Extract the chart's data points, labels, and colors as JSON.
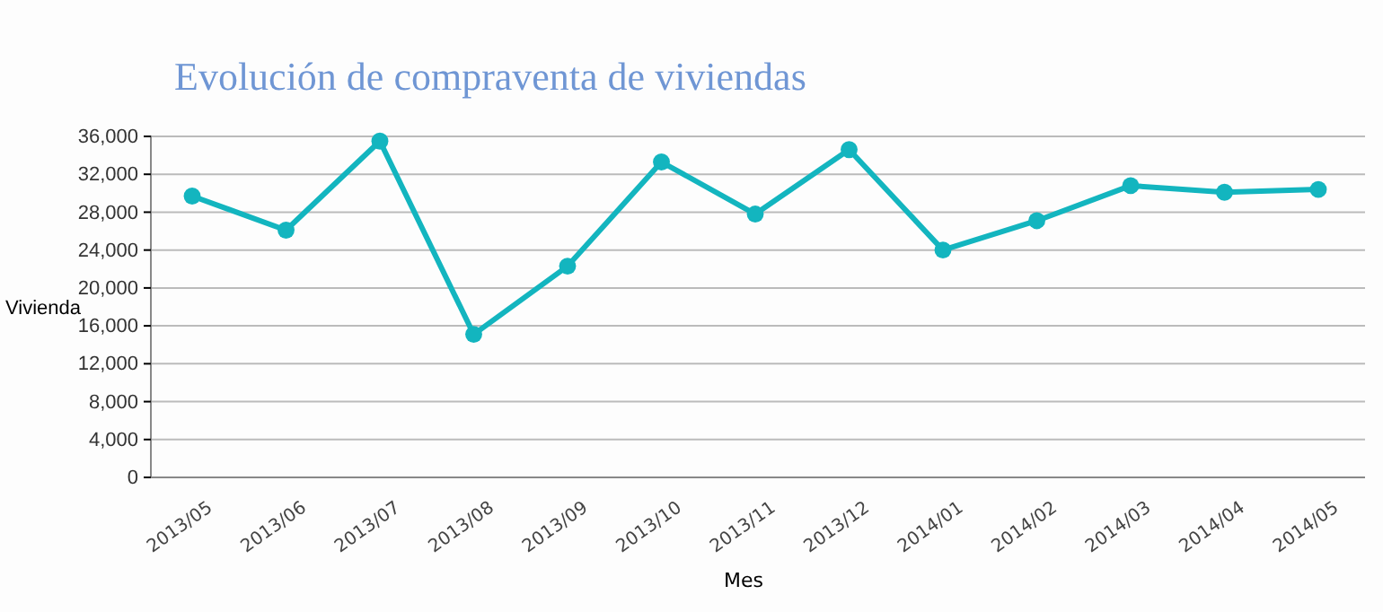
{
  "chart_data": {
    "type": "line",
    "title": "Evolución de compraventa de viviendas",
    "xlabel": "Mes",
    "ylabel": "Vivienda",
    "categories": [
      "2013/05",
      "2013/06",
      "2013/07",
      "2013/08",
      "2013/09",
      "2013/10",
      "2013/11",
      "2013/12",
      "2014/01",
      "2014/02",
      "2014/03",
      "2014/04",
      "2014/05"
    ],
    "series": [
      {
        "color": "#13b5bf",
        "values": [
          29700,
          26100,
          35500,
          15100,
          22300,
          33300,
          27800,
          34600,
          24000,
          27100,
          30800,
          30100,
          30400
        ]
      }
    ],
    "ylim": [
      0,
      36000
    ],
    "yticks": [
      {
        "value": 0,
        "label": "0"
      },
      {
        "value": 4000,
        "label": "4,000"
      },
      {
        "value": 8000,
        "label": "8,000"
      },
      {
        "value": 12000,
        "label": "12,000"
      },
      {
        "value": 16000,
        "label": "16,000"
      },
      {
        "value": 20000,
        "label": "20,000"
      },
      {
        "value": 24000,
        "label": "24,000"
      },
      {
        "value": 28000,
        "label": "28,000"
      },
      {
        "value": 32000,
        "label": "32,000"
      },
      {
        "value": 36000,
        "label": "36,000"
      }
    ],
    "grid": "y",
    "marker": "circle",
    "line_style": "solid"
  }
}
